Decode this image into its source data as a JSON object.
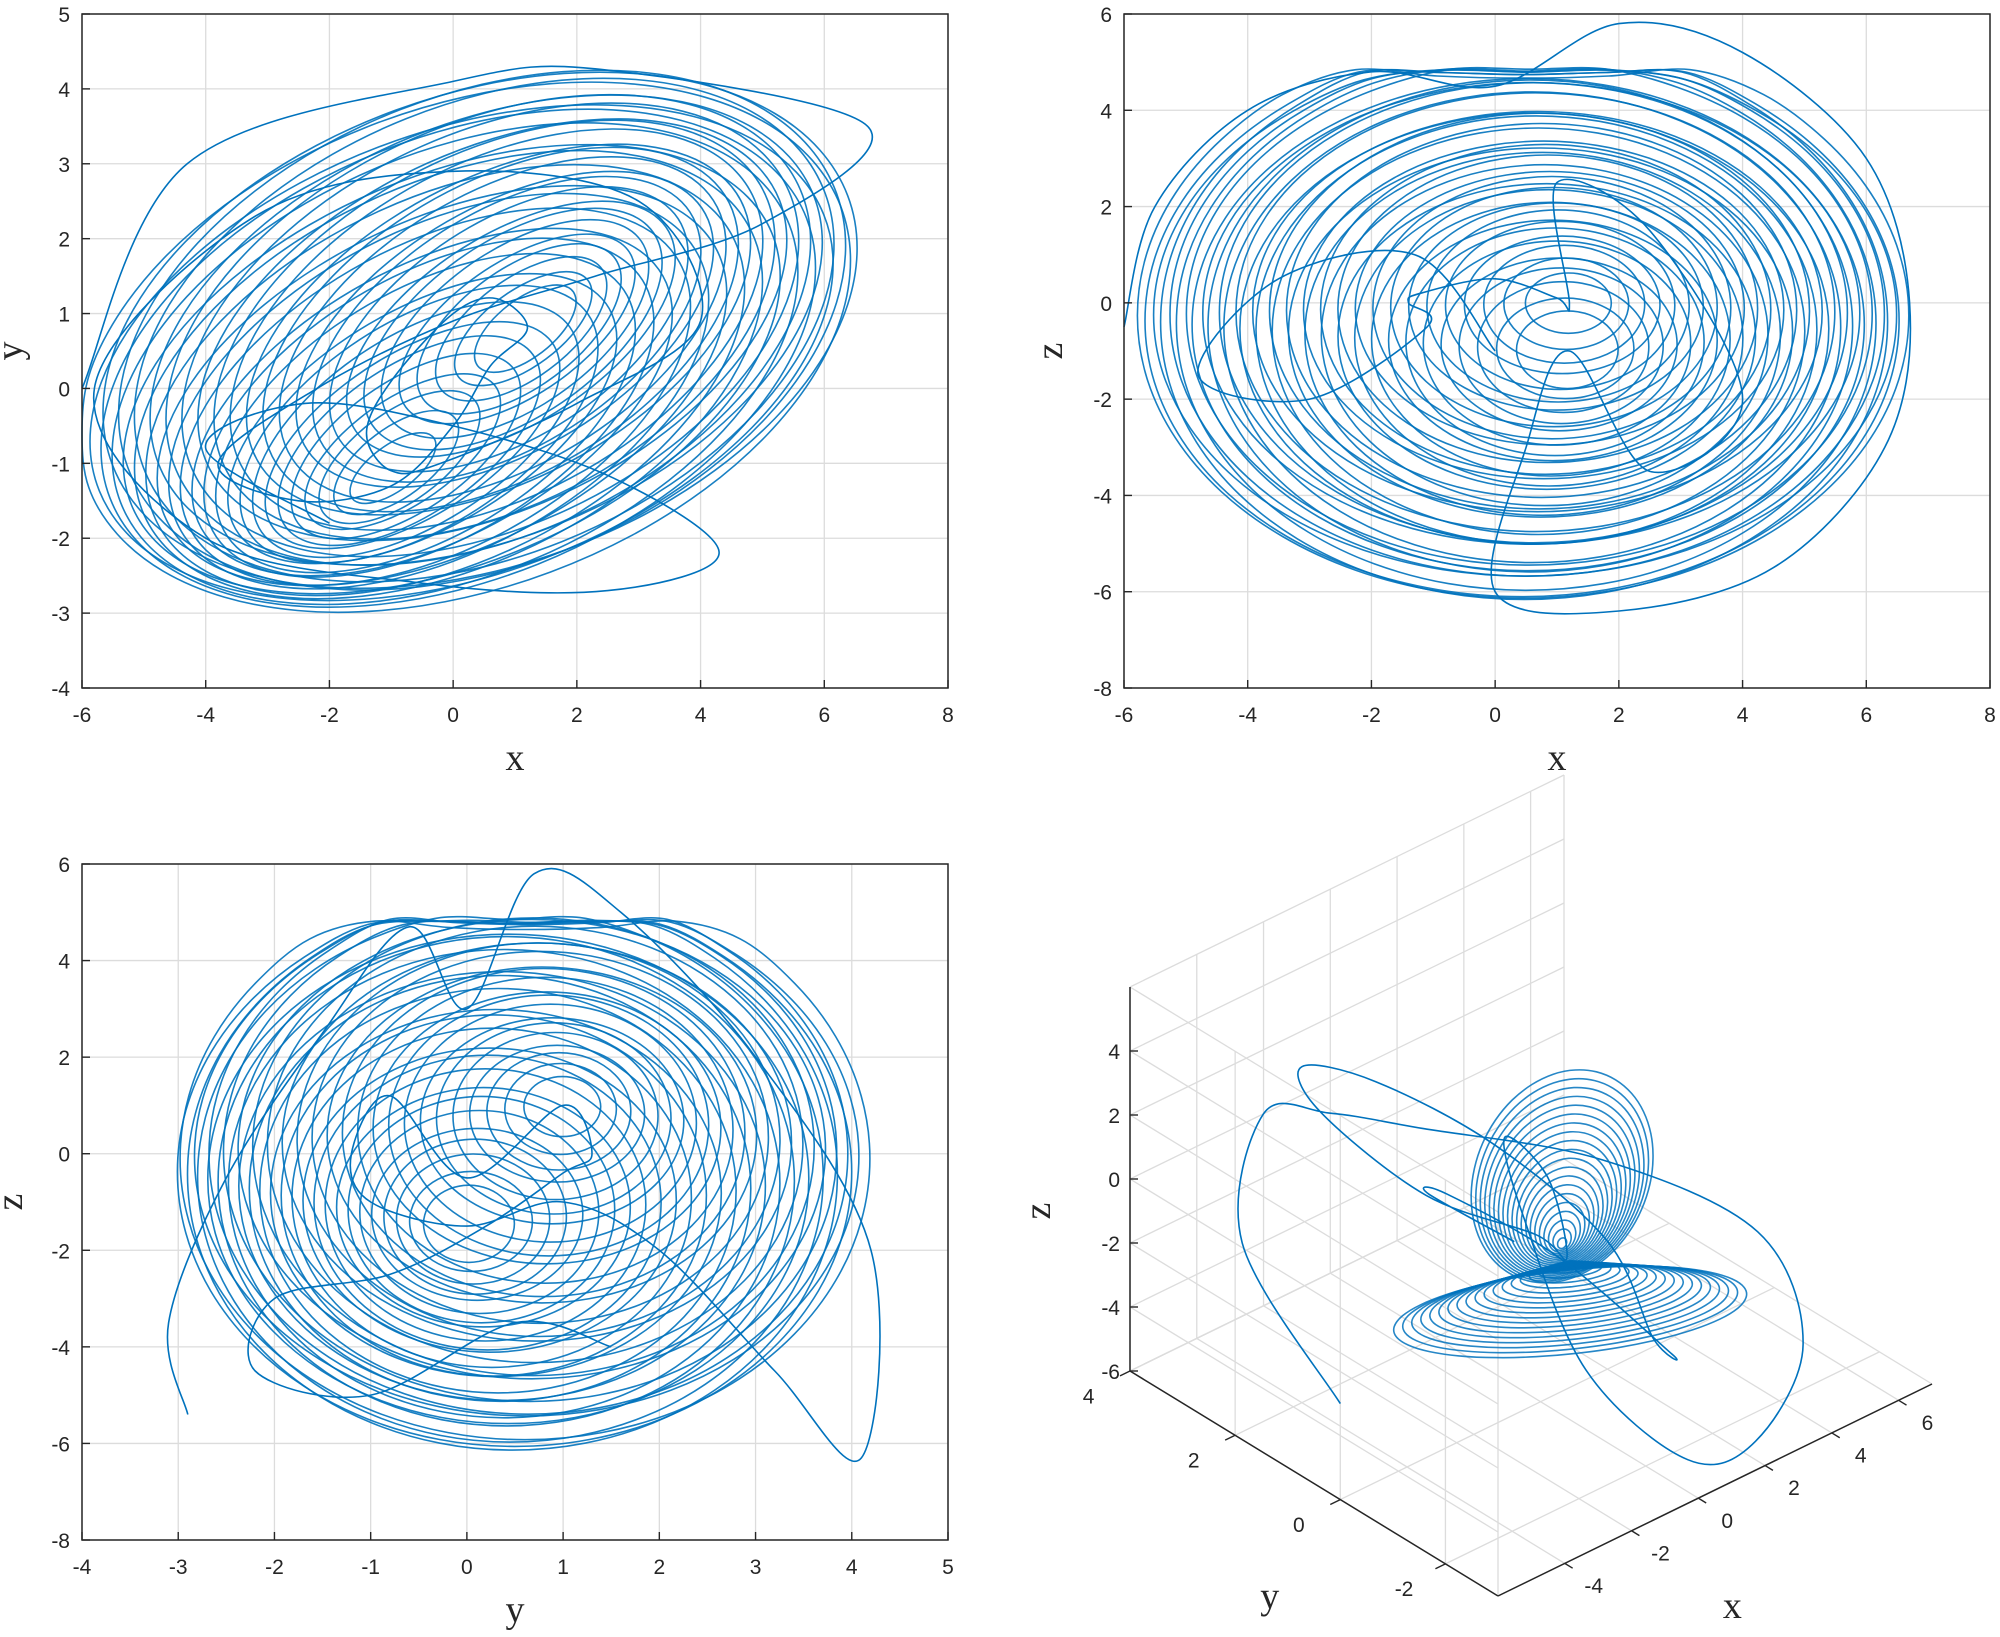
{
  "colors": {
    "trace": "#0072bd",
    "axis": "#262626",
    "grid": "#dcdcdc",
    "background": "#ffffff"
  },
  "chart_data": [
    {
      "type": "line",
      "projection": "x-y",
      "xlabel": "x",
      "ylabel": "y",
      "xlim": [
        -6,
        8
      ],
      "ylim": [
        -4,
        5
      ],
      "xticks": [
        -6,
        -4,
        -2,
        0,
        2,
        4,
        6,
        8
      ],
      "yticks": [
        -4,
        -3,
        -2,
        -1,
        0,
        1,
        2,
        3,
        4,
        5
      ],
      "grid": true,
      "series": [
        {
          "values": {
            "x": [
              -6.0,
              -4.3,
              0.0,
              2.5,
              6.7,
              5.0,
              2.3,
              0.0,
              -2.2,
              -3.8,
              -2.5,
              -1.0,
              0.0,
              0.6,
              1.2,
              0.7,
              0.0,
              -1.0,
              -1.4,
              -1.0,
              -0.2,
              2.0,
              4.0,
              3.0,
              0.0,
              -3.2,
              -5.8,
              -4.0,
              -0.5,
              2.5,
              4.3,
              2.6,
              0.0,
              -2.4,
              -4.0,
              -2.0
            ],
            "y": [
              0.0,
              3.0,
              4.1,
              4.25,
              3.5,
              2.2,
              1.5,
              0.9,
              0.0,
              -1.0,
              -1.5,
              -1.3,
              -0.5,
              0.3,
              0.8,
              1.2,
              1.0,
              0.1,
              -0.6,
              -1.1,
              -1.0,
              -0.2,
              0.9,
              2.5,
              2.9,
              2.3,
              0.0,
              -2.0,
              -2.6,
              -2.7,
              -2.2,
              -1.2,
              -0.5,
              -0.2,
              -0.8,
              -1.8
            ]
          }
        }
      ]
    },
    {
      "type": "line",
      "projection": "x-z",
      "xlabel": "x",
      "ylabel": "z",
      "xlim": [
        -6,
        8
      ],
      "ylim": [
        -8,
        6
      ],
      "xticks": [
        -6,
        -4,
        -2,
        0,
        2,
        4,
        6,
        8
      ],
      "yticks": [
        -8,
        -6,
        -4,
        -2,
        0,
        2,
        4,
        6
      ],
      "grid": true,
      "series": [
        {
          "values": {
            "x": [
              -6.0,
              -5.5,
              -4.0,
              -2.0,
              0.0,
              2.0,
              4.0,
              6.0,
              6.7,
              6.3,
              4.5,
              2.0,
              0.0,
              0.5,
              1.2,
              2.5,
              4.0,
              2.5,
              1.0,
              1.2,
              1.0,
              0.0,
              -1.2,
              -1.4,
              -1.1,
              -3.0,
              -4.8,
              -3.5,
              -1.3,
              0.0
            ],
            "y": [
              -0.5,
              2.0,
              4.0,
              4.8,
              4.5,
              5.8,
              5.2,
              3.0,
              0.0,
              -3.0,
              -5.5,
              -6.4,
              -6.0,
              -3.0,
              -1.0,
              -3.5,
              -2.0,
              1.5,
              2.5,
              0.0,
              0.1,
              0.5,
              0.2,
              0.0,
              -0.5,
              -2.0,
              -1.5,
              0.5,
              1.0,
              -1.0
            ]
          }
        }
      ]
    },
    {
      "type": "line",
      "projection": "y-z",
      "xlabel": "y",
      "ylabel": "z",
      "xlim": [
        -4,
        5
      ],
      "ylim": [
        -8,
        6
      ],
      "xticks": [
        -4,
        -3,
        -2,
        -1,
        0,
        1,
        2,
        3,
        4,
        5
      ],
      "yticks": [
        -8,
        -6,
        -4,
        -2,
        0,
        2,
        4,
        6
      ],
      "grid": true,
      "series": [
        {
          "values": {
            "x": [
              -2.9,
              -3.1,
              -2.5,
              -1.5,
              -0.6,
              0.0,
              0.7,
              1.6,
              3.0,
              4.2,
              4.1,
              3.2,
              2.0,
              1.0,
              0.0,
              -1.0,
              -1.2,
              -0.8,
              0.0,
              1.0,
              1.3,
              1.0,
              0.2,
              -0.8,
              -2.0,
              -2.2,
              -1.0,
              0.5,
              1.5
            ],
            "y": [
              -5.4,
              -3.5,
              -0.5,
              2.5,
              4.7,
              3.0,
              5.8,
              5.0,
              2.0,
              -2.0,
              -6.3,
              -4.5,
              -2.0,
              -1.0,
              -1.5,
              -1.0,
              0.0,
              1.2,
              -0.5,
              1.0,
              0.0,
              -0.4,
              -1.5,
              -2.5,
              -3.0,
              -4.5,
              -5.0,
              -3.5,
              -4.0
            ]
          }
        }
      ]
    },
    {
      "type": "line",
      "projection": "3d",
      "xlabel": "x",
      "ylabel": "y",
      "zlabel": "z",
      "xlim": [
        -6,
        7
      ],
      "ylim": [
        -3,
        4
      ],
      "zlim": [
        -6,
        6
      ],
      "xticks": [
        -4,
        -2,
        0,
        2,
        4,
        6
      ],
      "yticks": [
        -2,
        0,
        2,
        4
      ],
      "zticks": [
        -6,
        -4,
        -2,
        0,
        2,
        4
      ],
      "grid": true,
      "series": [
        {
          "values": {
            "x": [
              -6.0,
              -5.0,
              -2.0,
              0.0,
              2.0,
              5.0,
              6.5,
              5.5,
              2.5,
              0.0,
              -1.0,
              -0.5,
              0.5,
              1.0,
              0.0,
              -2.5,
              -5.0,
              -5.8,
              -4.0,
              -1.0,
              1.0,
              2.0,
              1.0,
              0.0,
              -1.0,
              -2.0,
              -1.0,
              0.0
            ],
            "y": [
              0.0,
              2.5,
              4.0,
              4.2,
              3.5,
              2.0,
              0.0,
              -1.5,
              -2.5,
              -2.8,
              -1.5,
              0.0,
              1.0,
              0.5,
              -0.5,
              -1.5,
              -1.0,
              0.5,
              2.0,
              2.5,
              1.5,
              0.0,
              -1.5,
              -2.5,
              -1.0,
              0.5,
              1.5,
              0.5
            ],
            "z": [
              -3.0,
              -1.0,
              0.0,
              -1.0,
              -2.0,
              -3.0,
              -4.0,
              -5.5,
              -6.0,
              -5.0,
              -3.0,
              0.0,
              1.0,
              0.0,
              -1.0,
              2.0,
              4.0,
              5.5,
              4.5,
              2.0,
              0.0,
              -2.0,
              -3.0,
              -2.0,
              0.0,
              1.0,
              -0.5,
              -1.5
            ]
          }
        }
      ]
    }
  ]
}
